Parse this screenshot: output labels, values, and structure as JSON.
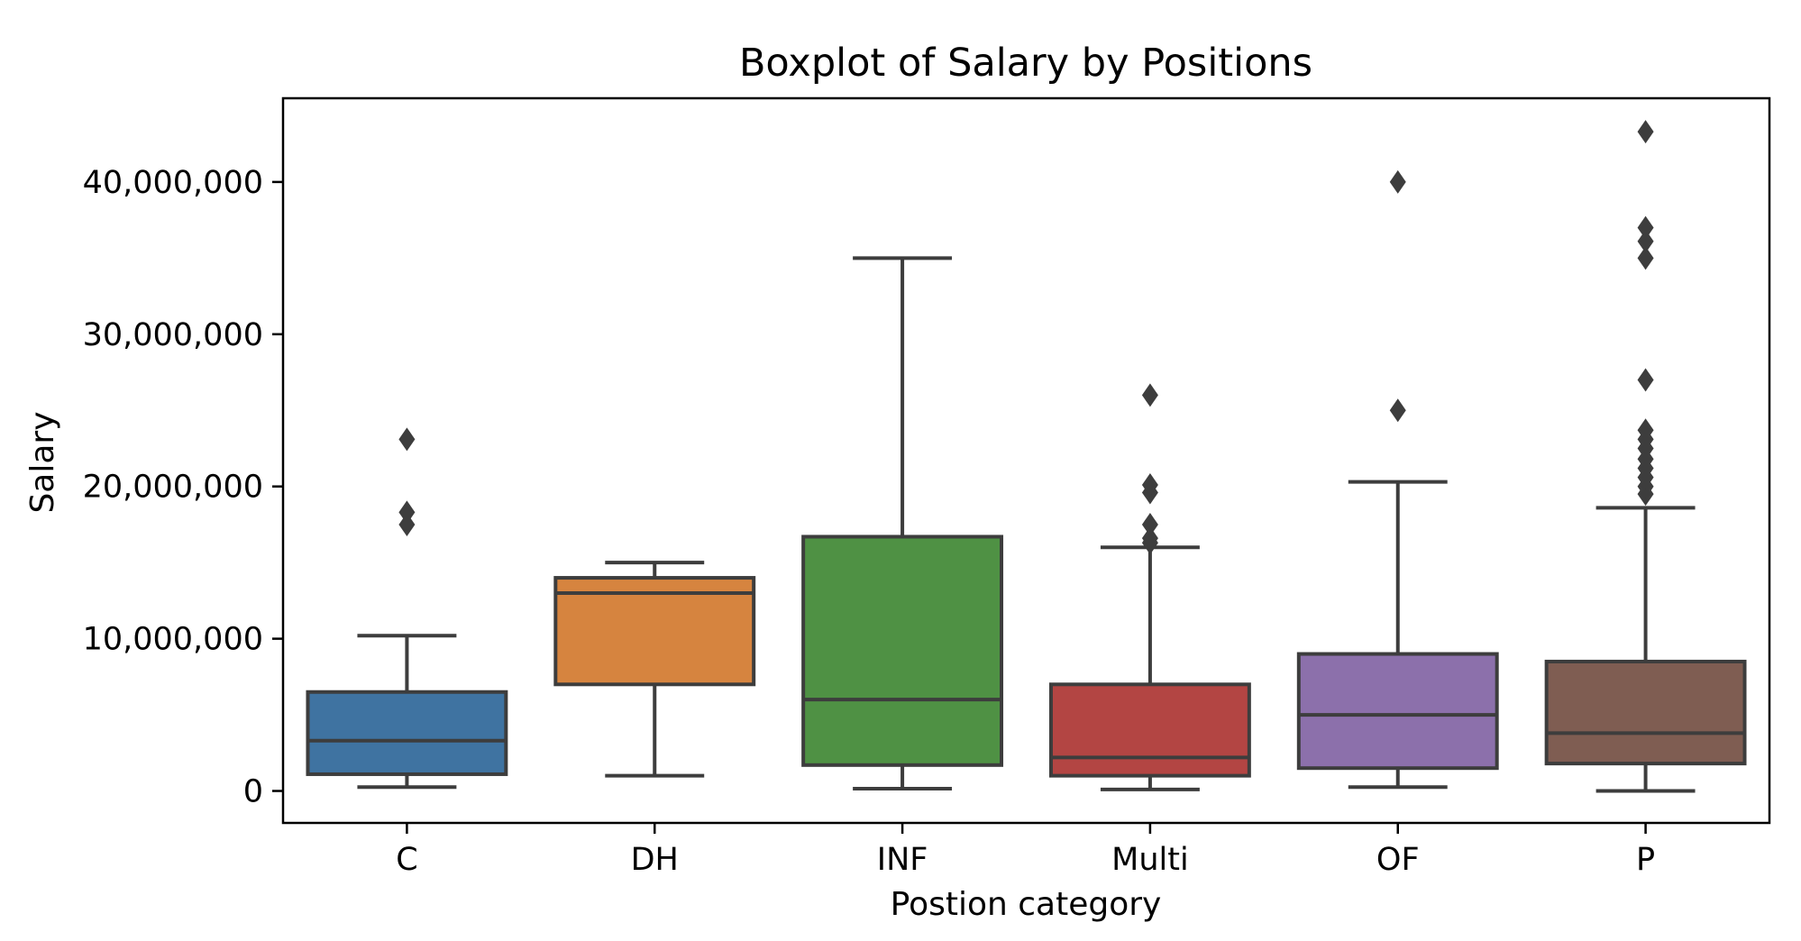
{
  "chart_data": {
    "type": "boxplot",
    "title": "Boxplot of Salary by Positions",
    "xlabel": "Postion category",
    "ylabel": "Salary",
    "ylim": [
      -2100000,
      45500000
    ],
    "yticks": [
      0,
      10000000,
      20000000,
      30000000,
      40000000
    ],
    "ytick_labels": [
      "0",
      "10,000,000",
      "20,000,000",
      "30,000,000",
      "40,000,000"
    ],
    "categories": [
      "C",
      "DH",
      "INF",
      "Multi",
      "OF",
      "P"
    ],
    "box_color_line": "#3d3d3d",
    "series": [
      {
        "category": "C",
        "color": "#3f73a1",
        "whisker_low": 250000,
        "q1": 1100000,
        "median": 3300000,
        "q3": 6500000,
        "whisker_high": 10200000,
        "outliers": [
          17500000,
          18300000,
          23100000
        ]
      },
      {
        "category": "DH",
        "color": "#d6843f",
        "whisker_low": 1000000,
        "q1": 7000000,
        "median": 13000000,
        "q3": 14000000,
        "whisker_high": 15000000,
        "outliers": []
      },
      {
        "category": "INF",
        "color": "#4f9144",
        "whisker_low": 150000,
        "q1": 1700000,
        "median": 6000000,
        "q3": 16700000,
        "whisker_high": 35000000,
        "outliers": []
      },
      {
        "category": "Multi",
        "color": "#b34543",
        "whisker_low": 100000,
        "q1": 1000000,
        "median": 2200000,
        "q3": 7000000,
        "whisker_high": 16000000,
        "outliers": [
          16300000,
          16600000,
          17500000,
          19600000,
          20100000,
          26000000
        ]
      },
      {
        "category": "OF",
        "color": "#8c70ab",
        "whisker_low": 250000,
        "q1": 1500000,
        "median": 5000000,
        "q3": 9000000,
        "whisker_high": 20300000,
        "outliers": [
          25000000,
          40000000
        ]
      },
      {
        "category": "P",
        "color": "#7f5d52",
        "whisker_low": 0,
        "q1": 1800000,
        "median": 3800000,
        "q3": 8500000,
        "whisker_high": 18600000,
        "outliers": [
          19500000,
          20000000,
          20600000,
          21200000,
          21800000,
          22500000,
          23100000,
          23700000,
          27000000,
          35000000,
          36100000,
          37000000,
          43300000
        ]
      }
    ]
  }
}
